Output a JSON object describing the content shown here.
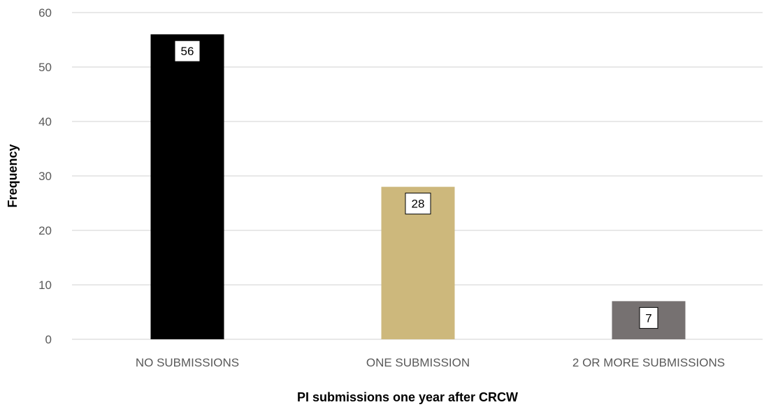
{
  "chart_data": {
    "type": "bar",
    "categories": [
      "NO SUBMISSIONS",
      "ONE SUBMISSION",
      "2 OR MORE SUBMISSIONS"
    ],
    "values": [
      56,
      28,
      7
    ],
    "data_labels": [
      "56",
      "28",
      "7"
    ],
    "title": "",
    "xlabel": "PI submissions one year after CRCW",
    "ylabel": "Frequency",
    "ylim": [
      0,
      60
    ],
    "yticks": [
      0,
      10,
      20,
      30,
      40,
      50,
      60
    ],
    "ytick_labels": [
      "0",
      "10",
      "20",
      "30",
      "40",
      "50",
      "60"
    ],
    "grid": true,
    "legend": "none",
    "bar_colors": [
      "#000000",
      "#CDB87C",
      "#767171"
    ],
    "colors": {
      "grid": "#d9d9d9",
      "tick_text": "#595959",
      "label_box": "#ffffff",
      "label_box_border": "#000000"
    }
  }
}
